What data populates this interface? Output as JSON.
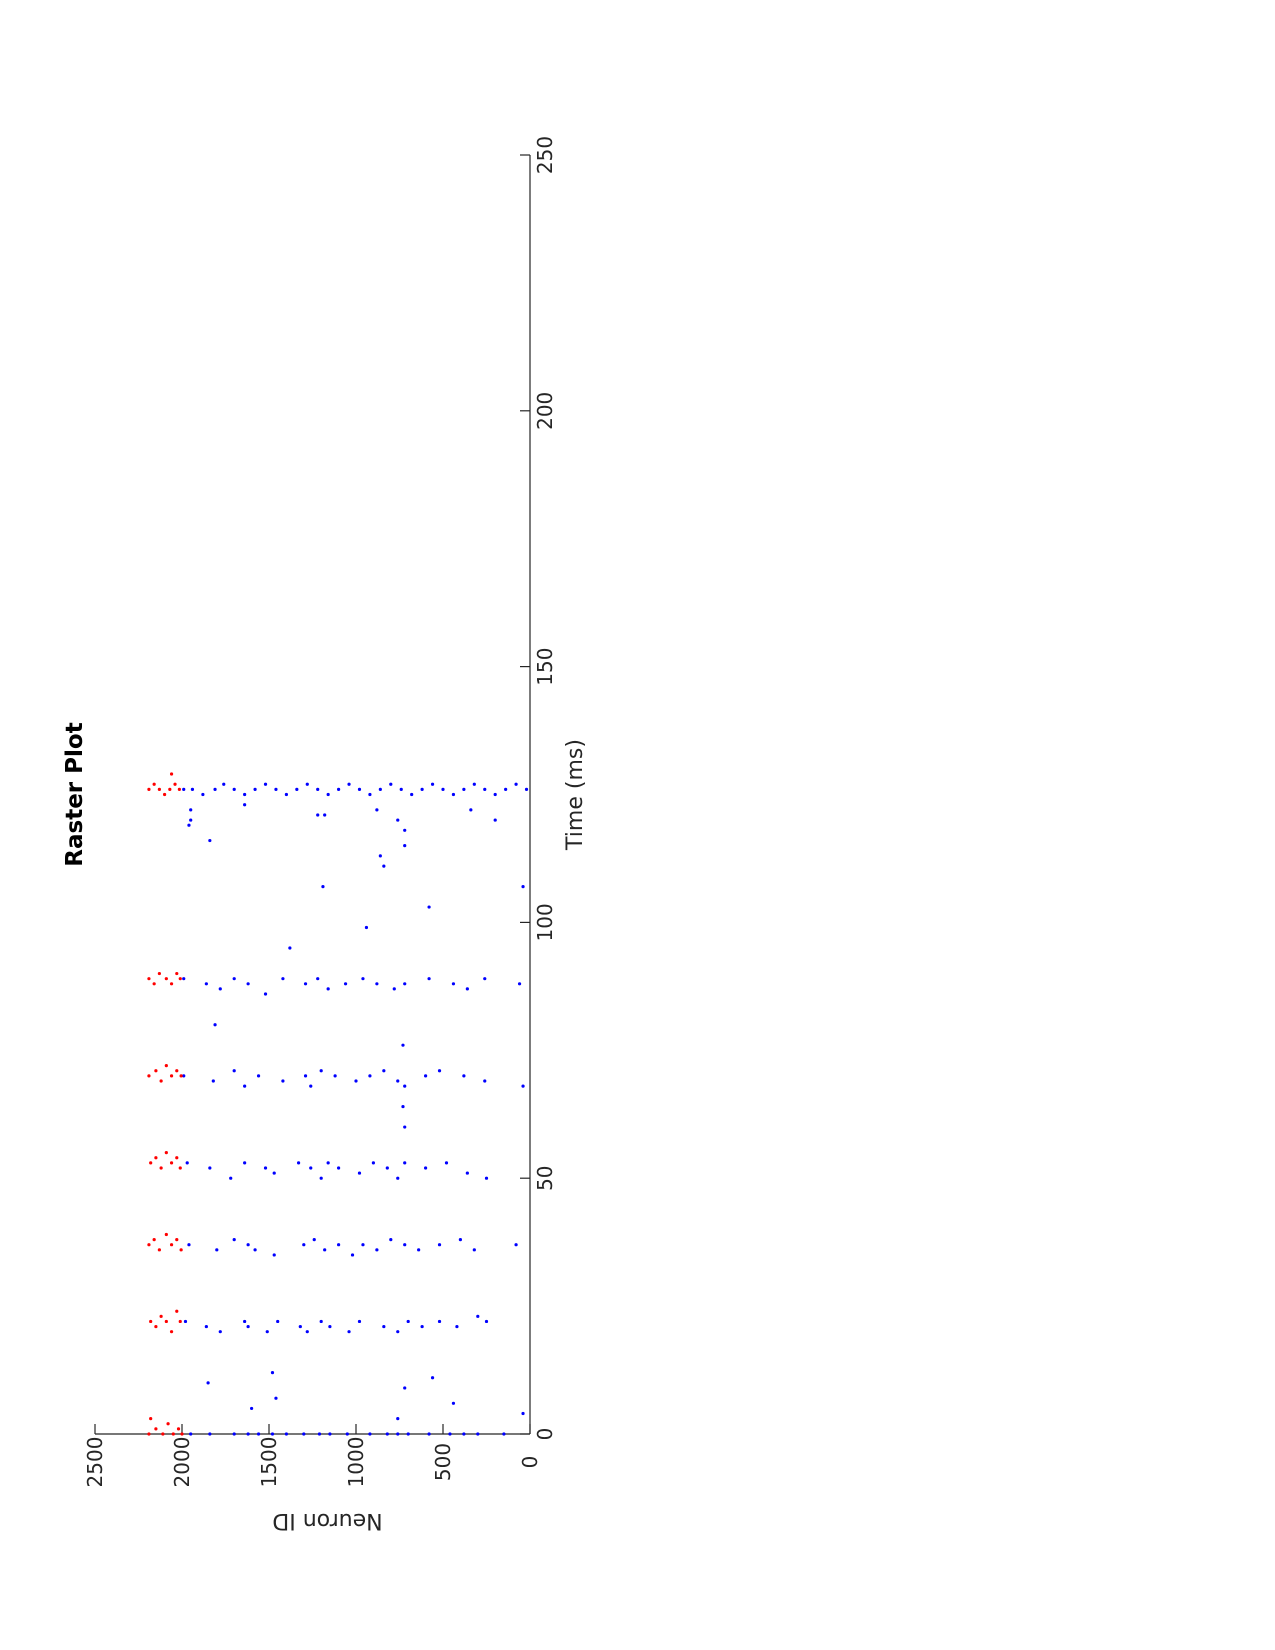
{
  "chart_data": {
    "type": "scatter",
    "title": "Raster Plot",
    "xlabel": "Time (ms)",
    "ylabel": "Neuron ID",
    "xlim": [
      0,
      250
    ],
    "ylim": [
      0,
      2500
    ],
    "x_ticks": [
      0,
      50,
      100,
      150,
      200,
      250
    ],
    "y_ticks": [
      0,
      500,
      1000,
      1500,
      2000,
      2500
    ],
    "grid": false,
    "bursts_ms": [
      0,
      22,
      37,
      53,
      70,
      89,
      126
    ],
    "series": [
      {
        "color": "#0000ff",
        "neuron_range": [
          0,
          2000
        ],
        "points": [
          [
            0,
            1950
          ],
          [
            0,
            1840
          ],
          [
            0,
            1700
          ],
          [
            0,
            1620
          ],
          [
            0,
            1560
          ],
          [
            0,
            1480
          ],
          [
            0,
            1400
          ],
          [
            0,
            1300
          ],
          [
            0,
            1210
          ],
          [
            0,
            1150
          ],
          [
            0,
            1050
          ],
          [
            0,
            920
          ],
          [
            0,
            820
          ],
          [
            0,
            760
          ],
          [
            0,
            700
          ],
          [
            0,
            580
          ],
          [
            0,
            460
          ],
          [
            0,
            380
          ],
          [
            0,
            300
          ],
          [
            0,
            150
          ],
          [
            5,
            1600
          ],
          [
            7,
            1460
          ],
          [
            3,
            760
          ],
          [
            9,
            720
          ],
          [
            6,
            440
          ],
          [
            4,
            40
          ],
          [
            10,
            1850
          ],
          [
            12,
            1480
          ],
          [
            11,
            560
          ],
          [
            22,
            1980
          ],
          [
            21,
            1860
          ],
          [
            20,
            1780
          ],
          [
            22,
            1640
          ],
          [
            21,
            1620
          ],
          [
            20,
            1510
          ],
          [
            22,
            1450
          ],
          [
            21,
            1320
          ],
          [
            20,
            1280
          ],
          [
            22,
            1200
          ],
          [
            21,
            1150
          ],
          [
            20,
            1040
          ],
          [
            22,
            980
          ],
          [
            21,
            840
          ],
          [
            20,
            760
          ],
          [
            22,
            700
          ],
          [
            21,
            620
          ],
          [
            22,
            520
          ],
          [
            21,
            420
          ],
          [
            23,
            300
          ],
          [
            22,
            250
          ],
          [
            37,
            1960
          ],
          [
            36,
            1800
          ],
          [
            38,
            1700
          ],
          [
            37,
            1620
          ],
          [
            36,
            1580
          ],
          [
            35,
            1470
          ],
          [
            37,
            1300
          ],
          [
            38,
            1240
          ],
          [
            36,
            1180
          ],
          [
            37,
            1100
          ],
          [
            35,
            1020
          ],
          [
            37,
            960
          ],
          [
            36,
            880
          ],
          [
            38,
            800
          ],
          [
            37,
            720
          ],
          [
            36,
            640
          ],
          [
            37,
            520
          ],
          [
            38,
            400
          ],
          [
            36,
            320
          ],
          [
            37,
            80
          ],
          [
            53,
            1970
          ],
          [
            52,
            1840
          ],
          [
            50,
            1720
          ],
          [
            53,
            1640
          ],
          [
            52,
            1520
          ],
          [
            51,
            1470
          ],
          [
            53,
            1330
          ],
          [
            52,
            1260
          ],
          [
            50,
            1200
          ],
          [
            53,
            1160
          ],
          [
            52,
            1100
          ],
          [
            51,
            980
          ],
          [
            53,
            900
          ],
          [
            52,
            820
          ],
          [
            50,
            760
          ],
          [
            53,
            720
          ],
          [
            52,
            600
          ],
          [
            53,
            480
          ],
          [
            51,
            360
          ],
          [
            50,
            250
          ],
          [
            70,
            1990
          ],
          [
            69,
            1820
          ],
          [
            71,
            1700
          ],
          [
            68,
            1640
          ],
          [
            70,
            1560
          ],
          [
            69,
            1420
          ],
          [
            70,
            1290
          ],
          [
            68,
            1260
          ],
          [
            71,
            1200
          ],
          [
            70,
            1120
          ],
          [
            69,
            1000
          ],
          [
            70,
            920
          ],
          [
            71,
            840
          ],
          [
            69,
            760
          ],
          [
            68,
            720
          ],
          [
            70,
            600
          ],
          [
            71,
            520
          ],
          [
            70,
            380
          ],
          [
            69,
            260
          ],
          [
            68,
            40
          ],
          [
            89,
            1990
          ],
          [
            88,
            1860
          ],
          [
            87,
            1780
          ],
          [
            89,
            1700
          ],
          [
            88,
            1620
          ],
          [
            86,
            1520
          ],
          [
            89,
            1420
          ],
          [
            88,
            1290
          ],
          [
            89,
            1220
          ],
          [
            87,
            1160
          ],
          [
            88,
            1060
          ],
          [
            89,
            960
          ],
          [
            88,
            880
          ],
          [
            87,
            780
          ],
          [
            88,
            720
          ],
          [
            89,
            580
          ],
          [
            88,
            440
          ],
          [
            87,
            360
          ],
          [
            89,
            260
          ],
          [
            88,
            60
          ],
          [
            60,
            720
          ],
          [
            64,
            730
          ],
          [
            76,
            730
          ],
          [
            80,
            1810
          ],
          [
            95,
            1380
          ],
          [
            99,
            940
          ],
          [
            103,
            580
          ],
          [
            107,
            1190
          ],
          [
            107,
            40
          ],
          [
            111,
            840
          ],
          [
            113,
            860
          ],
          [
            115,
            720
          ],
          [
            116,
            1840
          ],
          [
            119,
            1960
          ],
          [
            126,
            1990
          ],
          [
            126,
            1940
          ],
          [
            125,
            1880
          ],
          [
            126,
            1810
          ],
          [
            127,
            1760
          ],
          [
            126,
            1700
          ],
          [
            125,
            1640
          ],
          [
            126,
            1580
          ],
          [
            127,
            1520
          ],
          [
            126,
            1460
          ],
          [
            125,
            1400
          ],
          [
            126,
            1340
          ],
          [
            127,
            1280
          ],
          [
            126,
            1220
          ],
          [
            125,
            1160
          ],
          [
            126,
            1100
          ],
          [
            127,
            1040
          ],
          [
            126,
            980
          ],
          [
            125,
            920
          ],
          [
            126,
            860
          ],
          [
            127,
            800
          ],
          [
            126,
            740
          ],
          [
            125,
            680
          ],
          [
            126,
            620
          ],
          [
            127,
            560
          ],
          [
            126,
            500
          ],
          [
            125,
            440
          ],
          [
            126,
            380
          ],
          [
            127,
            320
          ],
          [
            126,
            260
          ],
          [
            125,
            200
          ],
          [
            126,
            140
          ],
          [
            127,
            80
          ],
          [
            126,
            20
          ],
          [
            122,
            1950
          ],
          [
            120,
            1950
          ],
          [
            123,
            1640
          ],
          [
            121,
            1220
          ],
          [
            121,
            1180
          ],
          [
            122,
            880
          ],
          [
            120,
            760
          ],
          [
            118,
            720
          ],
          [
            122,
            340
          ],
          [
            120,
            200
          ]
        ]
      },
      {
        "color": "#ff0000",
        "neuron_range": [
          2000,
          2200
        ],
        "points": [
          [
            0,
            2190
          ],
          [
            1,
            2150
          ],
          [
            0,
            2110
          ],
          [
            2,
            2080
          ],
          [
            0,
            2050
          ],
          [
            1,
            2020
          ],
          [
            3,
            2180
          ],
          [
            0,
            2000
          ],
          [
            22,
            2180
          ],
          [
            21,
            2150
          ],
          [
            23,
            2120
          ],
          [
            22,
            2090
          ],
          [
            20,
            2060
          ],
          [
            24,
            2030
          ],
          [
            22,
            2010
          ],
          [
            37,
            2190
          ],
          [
            38,
            2160
          ],
          [
            36,
            2130
          ],
          [
            39,
            2090
          ],
          [
            37,
            2060
          ],
          [
            38,
            2030
          ],
          [
            36,
            2005
          ],
          [
            53,
            2180
          ],
          [
            54,
            2150
          ],
          [
            52,
            2120
          ],
          [
            55,
            2090
          ],
          [
            53,
            2060
          ],
          [
            54,
            2030
          ],
          [
            52,
            2010
          ],
          [
            70,
            2190
          ],
          [
            71,
            2150
          ],
          [
            69,
            2120
          ],
          [
            72,
            2090
          ],
          [
            70,
            2060
          ],
          [
            71,
            2030
          ],
          [
            70,
            2005
          ],
          [
            89,
            2190
          ],
          [
            88,
            2160
          ],
          [
            90,
            2130
          ],
          [
            89,
            2090
          ],
          [
            88,
            2060
          ],
          [
            90,
            2030
          ],
          [
            89,
            2010
          ],
          [
            126,
            2190
          ],
          [
            127,
            2160
          ],
          [
            126,
            2130
          ],
          [
            125,
            2100
          ],
          [
            126,
            2070
          ],
          [
            127,
            2040
          ],
          [
            126,
            2015
          ],
          [
            129,
            2060
          ]
        ]
      }
    ]
  }
}
